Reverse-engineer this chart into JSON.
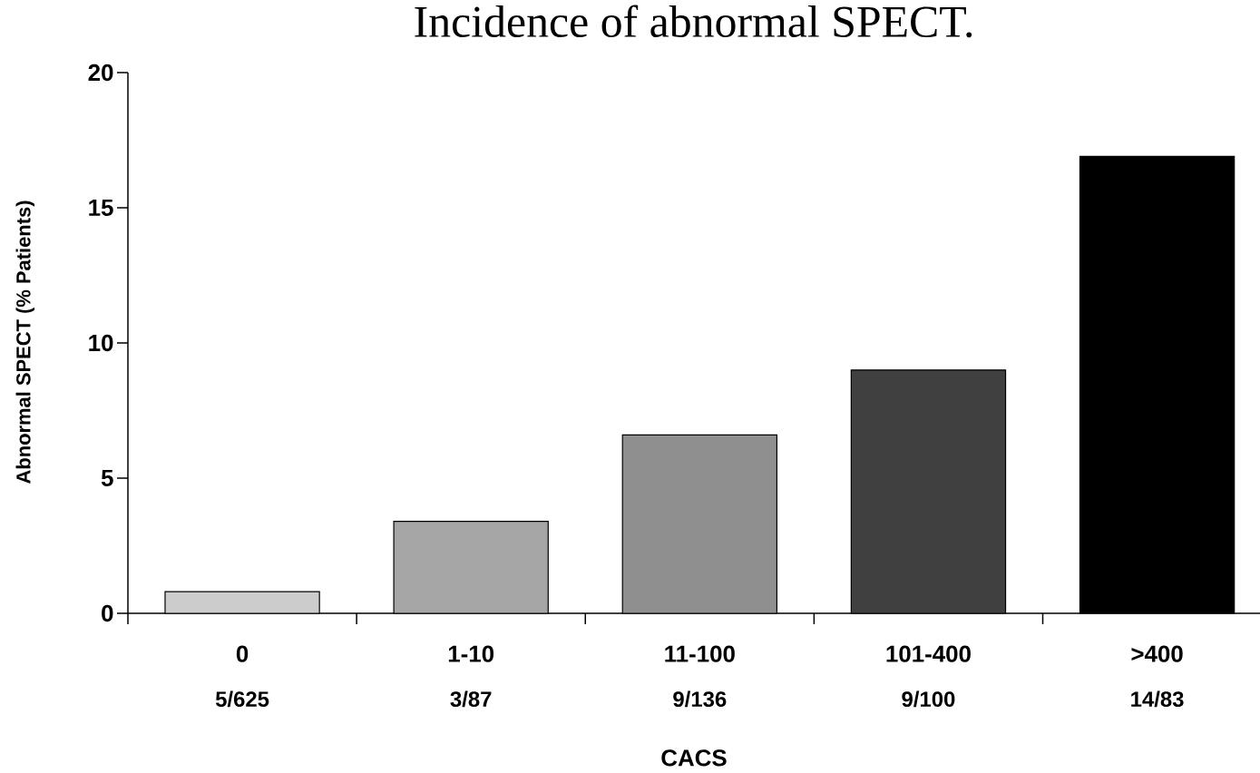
{
  "chart_data": {
    "type": "bar",
    "title": "Incidence of abnormal SPECT.",
    "xlabel": "CACS",
    "ylabel": "Abnormal SPECT (% Patients)",
    "categories": [
      "0",
      "1-10",
      "11-100",
      "101-400",
      ">400"
    ],
    "values": [
      0.8,
      3.4,
      6.6,
      9.0,
      16.9
    ],
    "colors": [
      "#cccccc",
      "#a6a6a6",
      "#8f8f8f",
      "#404040",
      "#000000"
    ],
    "ylim": [
      0,
      20
    ],
    "yticks": [
      0,
      5,
      10,
      15,
      20
    ],
    "grid": false,
    "annotations": [
      "5/625",
      "3/87",
      "9/136",
      "9/100",
      "14/83"
    ]
  }
}
